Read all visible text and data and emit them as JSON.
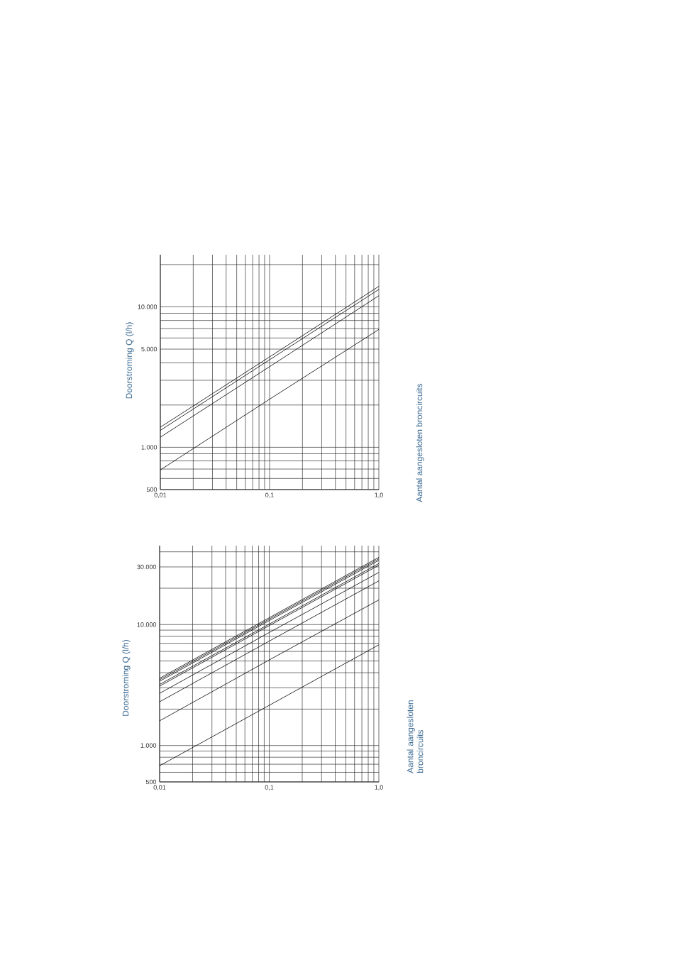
{
  "chart_data": [
    {
      "type": "line",
      "ylabel": "Doorstroming Q (l/h)",
      "y2label": "Aantal aangesloten broncircuits",
      "log": "xy",
      "grid": true,
      "marker": "none",
      "line_style": "solid",
      "x": [
        0.01,
        0.1,
        1.0
      ],
      "xlim": [
        0.01,
        1.0
      ],
      "ylim": [
        500,
        23500
      ],
      "xticks": [
        {
          "value": 0.01,
          "label": "0,01"
        },
        {
          "value": 0.1,
          "label": "0,1"
        },
        {
          "value": 1.0,
          "label": "1,0"
        }
      ],
      "yticks": [
        500,
        {
          "value": 1000,
          "label": "1.000"
        },
        {
          "value": 5000,
          "label": "5.000"
        },
        {
          "value": 10000,
          "label": "10.000"
        }
      ],
      "series": [
        {
          "color": "#000000",
          "values": [
            1390,
            4400,
            14000
          ]
        },
        {
          "color": "#000000",
          "values": [
            1320,
            4200,
            13300
          ]
        },
        {
          "color": "#000000",
          "values": [
            1180,
            3750,
            12000
          ]
        },
        {
          "color": "#000000",
          "values": [
            690,
            2200,
            6900
          ]
        }
      ]
    },
    {
      "type": "line",
      "ylabel": "Doorstroming Q (l/h)",
      "y2label": "Aantal aangesloten broncircuits",
      "log": "xy",
      "grid": true,
      "marker": "none",
      "line_style": "solid",
      "x": [
        0.01,
        0.1,
        1.0
      ],
      "xlim": [
        0.01,
        1.0
      ],
      "ylim": [
        500,
        45000
      ],
      "xticks": [
        {
          "value": 0.01,
          "label": "0,01"
        },
        {
          "value": 0.1,
          "label": "0,1"
        },
        {
          "value": 1.0,
          "label": "1,0"
        }
      ],
      "yticks": [
        500,
        {
          "value": 1000,
          "label": "1.000"
        },
        {
          "value": 10000,
          "label": "10.000"
        },
        {
          "value": 30000,
          "label": "30.000"
        }
      ],
      "series": [
        {
          "color": "#000000",
          "values": [
            3600,
            11400,
            36000
          ]
        },
        {
          "color": "#000000",
          "values": [
            3500,
            11100,
            35000
          ]
        },
        {
          "color": "#000000",
          "values": [
            3400,
            10800,
            34000
          ]
        },
        {
          "color": "#000000",
          "values": [
            3200,
            10100,
            32000
          ]
        },
        {
          "color": "#000000",
          "values": [
            3100,
            9800,
            31000
          ]
        },
        {
          "color": "#000000",
          "values": [
            2700,
            8600,
            27000
          ]
        },
        {
          "color": "#000000",
          "values": [
            2300,
            7300,
            23000
          ]
        },
        {
          "color": "#000000",
          "values": [
            1600,
            5100,
            16000
          ]
        },
        {
          "color": "#000000",
          "values": [
            680,
            2150,
            6800
          ]
        }
      ]
    }
  ]
}
